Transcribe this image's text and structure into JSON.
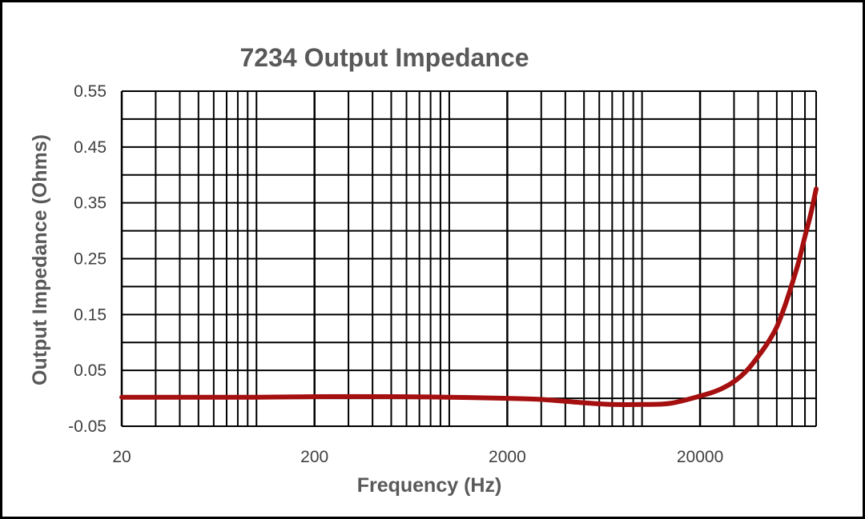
{
  "chart_data": {
    "type": "line",
    "title": "7234 Output Impedance",
    "xlabel": "Frequency (Hz)",
    "ylabel": "Output Impedance (Ohms)",
    "x_scale": "log",
    "xlim": [
      20,
      80000
    ],
    "ylim": [
      -0.05,
      0.55
    ],
    "x_ticks": [
      "20",
      "200",
      "2000",
      "20000"
    ],
    "x_tick_values": [
      20,
      200,
      2000,
      20000
    ],
    "y_ticks": [
      "0.55",
      "0.45",
      "0.35",
      "0.25",
      "0.15",
      "0.05",
      "-0.05"
    ],
    "y_tick_values": [
      0.55,
      0.45,
      0.35,
      0.25,
      0.15,
      0.05,
      -0.05
    ],
    "grid": true,
    "legend": "none",
    "series": [
      {
        "color": "#A50F0F",
        "x": [
          20,
          30,
          50,
          100,
          200,
          500,
          1000,
          2000,
          3000,
          5000,
          7000,
          10000,
          14000,
          20000,
          25000,
          30000,
          35000,
          40000,
          45000,
          50000,
          55000,
          60000,
          65000,
          70000,
          75000,
          80000
        ],
        "y": [
          0.002,
          0.002,
          0.002,
          0.002,
          0.003,
          0.003,
          0.002,
          0.0,
          -0.002,
          -0.008,
          -0.011,
          -0.011,
          -0.009,
          0.004,
          0.015,
          0.03,
          0.05,
          0.075,
          0.1,
          0.128,
          0.165,
          0.205,
          0.245,
          0.29,
          0.33,
          0.375
        ]
      }
    ]
  }
}
